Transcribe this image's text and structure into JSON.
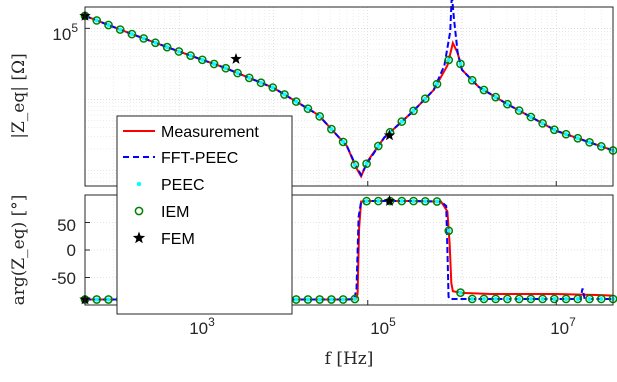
{
  "chart_data": [
    {
      "type": "line",
      "panel": "magnitude",
      "xscale": "log",
      "yscale": "log",
      "xlim": [
        100,
        40000000
      ],
      "ylim": [
        600,
        200000
      ],
      "ylabel": "|Z_eq| [Ω]",
      "yticks": [
        {
          "value": 100000,
          "base": "10",
          "exp": "5"
        }
      ],
      "grid": true,
      "legend_position": "left",
      "series": [
        {
          "name": "Measurement",
          "color": "#ff0000",
          "style": "solid",
          "x": [
            100,
            300,
            1000,
            3000,
            10000,
            30000,
            60000,
            75000,
            85000,
            100000,
            150000,
            200000,
            300000,
            500000,
            700000,
            800000,
            900000,
            1000000,
            1500000,
            3000000,
            10000000,
            40000000
          ],
          "y": [
            150000,
            85000,
            47000,
            28000,
            14500,
            6000,
            2200,
            1100,
            820,
            1350,
            2900,
            4100,
            6700,
            13500,
            30000,
            62000,
            45000,
            26000,
            15000,
            8600,
            3600,
            1900
          ]
        },
        {
          "name": "FFT-PEEC",
          "color": "#0000ff",
          "style": "dashed",
          "x": [
            100,
            300,
            1000,
            3000,
            10000,
            30000,
            60000,
            75000,
            85000,
            100000,
            150000,
            200000,
            300000,
            500000,
            650000,
            750000,
            780000,
            820000,
            900000,
            1000000,
            1500000,
            3000000,
            10000000,
            40000000
          ],
          "y": [
            150000,
            85000,
            47000,
            28000,
            14500,
            6000,
            2200,
            1150,
            860,
            1300,
            2900,
            4100,
            6700,
            13500,
            30000,
            90000,
            300000,
            140000,
            45000,
            26000,
            15000,
            8600,
            3600,
            1900
          ]
        },
        {
          "name": "PEEC",
          "color": "#00ffff",
          "style": "dots"
        },
        {
          "name": "IEM",
          "color": "#008000",
          "style": "circles"
        },
        {
          "name": "FEM",
          "color": "#000000",
          "style": "stars",
          "x": [
            100,
            4000,
            170000
          ],
          "y": [
            150000,
            37000,
            3100
          ]
        }
      ]
    },
    {
      "type": "line",
      "panel": "phase",
      "xscale": "log",
      "xlim": [
        100,
        40000000
      ],
      "ylim": [
        -100,
        100
      ],
      "xlabel": "f [Hz]",
      "ylabel": "arg(Z_eq) [°]",
      "yticks": [
        "50",
        "0",
        "-50"
      ],
      "xticks": [
        {
          "value": 1000,
          "base": "10",
          "exp": "3"
        },
        {
          "value": 100000,
          "base": "10",
          "exp": "5"
        },
        {
          "value": 10000000,
          "base": "10",
          "exp": "7"
        }
      ],
      "grid": true,
      "series": [
        {
          "name": "Measurement",
          "color": "#ff0000",
          "style": "solid",
          "x": [
            100,
            60000,
            75000,
            78000,
            81000,
            85000,
            100000,
            300000,
            600000,
            700000,
            740000,
            770000,
            800000,
            1000000,
            2000000,
            10000000,
            30000000,
            40000000
          ],
          "y": [
            -90,
            -90,
            -89,
            -80,
            40,
            88,
            89,
            89,
            88,
            70,
            10,
            -60,
            -75,
            -78,
            -80,
            -80,
            -82,
            -83
          ]
        },
        {
          "name": "FFT-PEEC",
          "color": "#0000ff",
          "style": "dashed",
          "x": [
            100,
            60000,
            72000,
            76000,
            80000,
            85000,
            100000,
            300000,
            600000,
            680000,
            700000,
            720000,
            740000,
            800000,
            1000000,
            10000000,
            18000000,
            19000000,
            20000000,
            40000000
          ],
          "y": [
            -90,
            -90,
            -89,
            -70,
            60,
            88,
            89,
            89,
            88,
            80,
            0,
            -85,
            -89,
            -89,
            -89,
            -89,
            -89,
            -70,
            -89,
            -89
          ]
        },
        {
          "name": "FEM",
          "color": "#000000",
          "style": "stars",
          "x": [
            100,
            4000,
            170000
          ],
          "y": [
            -90,
            -90,
            89
          ]
        }
      ]
    }
  ]
}
